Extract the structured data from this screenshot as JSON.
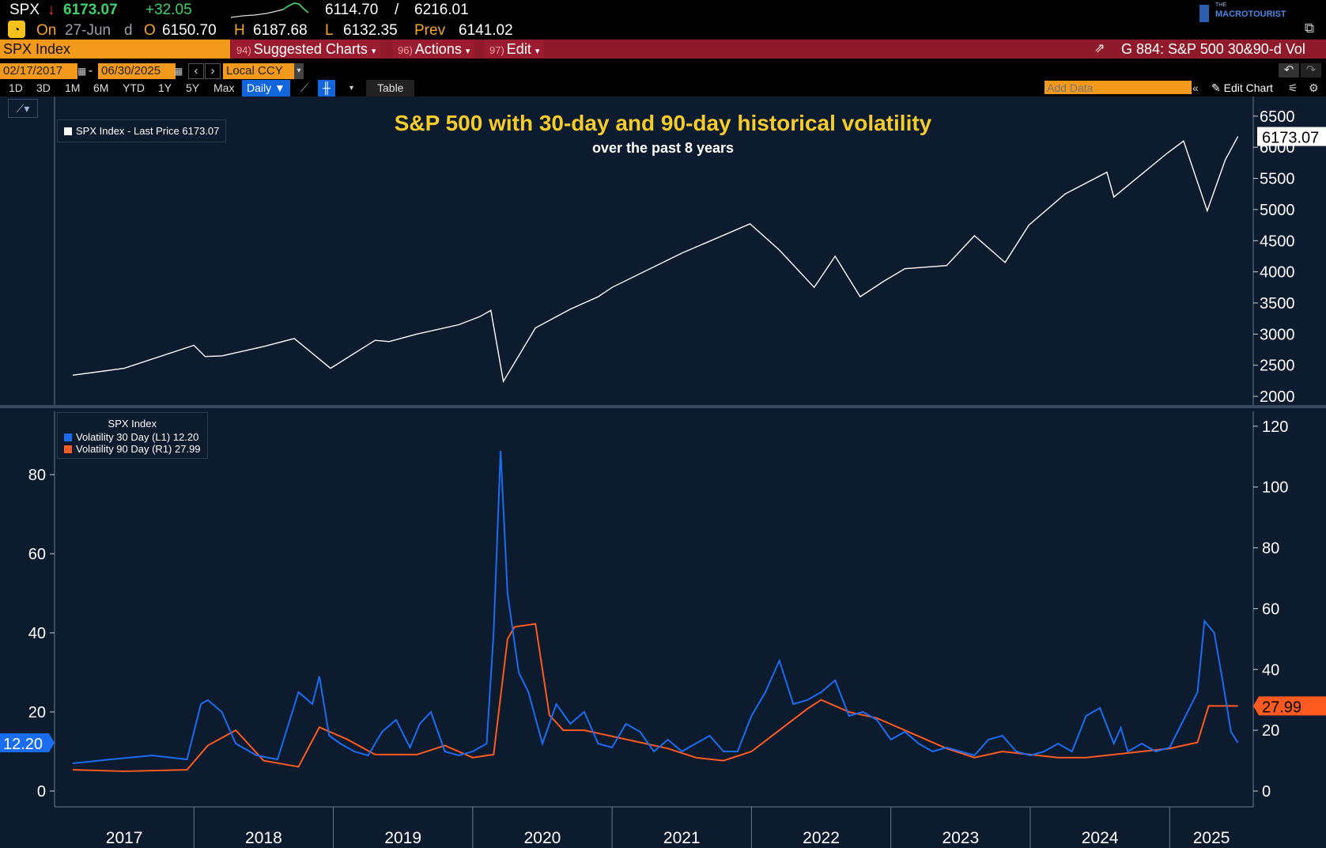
{
  "quote": {
    "ticker": "SPX",
    "arrow": "↓",
    "last": "6173.07",
    "change": "+32.05",
    "range_low": "6114.70",
    "range_sep": "/",
    "range_high": "6216.01",
    "on_label": "On",
    "date": "27-Jun",
    "freq": "d",
    "o_label": "O",
    "open": "6150.70",
    "h_label": "H",
    "high": "6187.68",
    "l_label": "L",
    "low": "6132.35",
    "prev_label": "Prev",
    "prev": "6141.02"
  },
  "logo": {
    "small": "THE",
    "text": "MACROTOURIST"
  },
  "cmdbar": {
    "security": "SPX Index",
    "btn1_num": "94)",
    "btn1": "Suggested Charts",
    "btn2_num": "96)",
    "btn2": "Actions",
    "btn3_num": "97)",
    "btn3": "Edit",
    "chart_title": "G 884: S&P 500 30&90-d Vol"
  },
  "daterange": {
    "start": "02/17/2017",
    "sep": "-",
    "end": "06/30/2025",
    "currency": "Local CCY"
  },
  "periods": [
    "1D",
    "3D",
    "1M",
    "6M",
    "YTD",
    "1Y",
    "5Y",
    "Max"
  ],
  "frequency": "Daily",
  "table_label": "Table",
  "add_data_placeholder": "Add Data",
  "edit_chart": "Edit Chart",
  "colors": {
    "price": "#ffffff",
    "vol30": "#1a6cf0",
    "vol90": "#ff5a1f",
    "title": "#f6cc2a",
    "bg": "#0d1b2e"
  },
  "chart_data": [
    {
      "type": "line",
      "title": "S&P 500 with 30-day and 90-day historical volatility",
      "subtitle": "over the past 8 years",
      "legend": "SPX Index - Last Price 6173.07",
      "last_value_label": "6173.07",
      "x_ticks": [
        "2017",
        "2018",
        "2019",
        "2020",
        "2021",
        "2022",
        "2023",
        "2024",
        "2025"
      ],
      "ylim": [
        1950,
        6650
      ],
      "yticks": [
        2000,
        2500,
        3000,
        3500,
        4000,
        4500,
        5000,
        5500,
        6000,
        6500
      ],
      "series": [
        {
          "name": "SPX Index - Last Price",
          "x": [
            2017.13,
            2017.5,
            2018.0,
            2018.08,
            2018.2,
            2018.5,
            2018.72,
            2018.98,
            2019.3,
            2019.4,
            2019.6,
            2019.9,
            2020.05,
            2020.13,
            2020.22,
            2020.45,
            2020.7,
            2020.9,
            2021.0,
            2021.5,
            2021.99,
            2022.2,
            2022.45,
            2022.6,
            2022.78,
            2022.95,
            2023.1,
            2023.4,
            2023.6,
            2023.82,
            2023.99,
            2024.25,
            2024.55,
            2024.6,
            2024.98,
            2025.1,
            2025.27,
            2025.4,
            2025.49
          ],
          "values": [
            2340,
            2450,
            2820,
            2640,
            2650,
            2800,
            2930,
            2450,
            2900,
            2880,
            3000,
            3150,
            3280,
            3380,
            2240,
            3100,
            3400,
            3600,
            3750,
            4300,
            4770,
            4350,
            3750,
            4250,
            3600,
            3850,
            4050,
            4100,
            4580,
            4150,
            4750,
            5250,
            5600,
            5200,
            5900,
            6100,
            4980,
            5800,
            6173
          ]
        }
      ]
    },
    {
      "type": "line",
      "legend_title": "SPX Index",
      "y_left_ticks": [
        0,
        20,
        40,
        60,
        80
      ],
      "y_right_ticks": [
        0,
        20,
        40,
        60,
        80,
        100,
        120
      ],
      "ylim_left": [
        -2,
        95
      ],
      "ylim_right": [
        -2.6,
        123.6
      ],
      "x_ticks": [
        "2017",
        "2018",
        "2019",
        "2020",
        "2021",
        "2022",
        "2023",
        "2024",
        "2025"
      ],
      "series": [
        {
          "name": "Volatility 30 Day",
          "axis": "L1",
          "last_label": "12.20",
          "legend": "Volatility 30 Day  (L1) 12.20",
          "x": [
            2017.13,
            2017.4,
            2017.7,
            2017.95,
            2018.05,
            2018.1,
            2018.2,
            2018.3,
            2018.45,
            2018.6,
            2018.75,
            2018.85,
            2018.9,
            2018.97,
            2019.05,
            2019.15,
            2019.25,
            2019.35,
            2019.45,
            2019.55,
            2019.62,
            2019.7,
            2019.8,
            2019.9,
            2020.0,
            2020.1,
            2020.15,
            2020.2,
            2020.25,
            2020.33,
            2020.4,
            2020.5,
            2020.6,
            2020.7,
            2020.8,
            2020.9,
            2021.0,
            2021.1,
            2021.2,
            2021.3,
            2021.4,
            2021.5,
            2021.6,
            2021.7,
            2021.8,
            2021.9,
            2022.0,
            2022.1,
            2022.2,
            2022.3,
            2022.4,
            2022.5,
            2022.6,
            2022.7,
            2022.8,
            2022.9,
            2023.0,
            2023.1,
            2023.2,
            2023.3,
            2023.4,
            2023.5,
            2023.6,
            2023.7,
            2023.8,
            2023.9,
            2024.0,
            2024.1,
            2024.2,
            2024.3,
            2024.4,
            2024.5,
            2024.6,
            2024.65,
            2024.7,
            2024.8,
            2024.9,
            2025.0,
            2025.1,
            2025.2,
            2025.25,
            2025.32,
            2025.38,
            2025.44,
            2025.49
          ],
          "values": [
            7,
            8,
            9,
            8,
            22,
            23,
            20,
            12,
            9,
            8,
            25,
            22,
            29,
            14,
            12,
            10,
            9,
            15,
            18,
            11,
            17,
            20,
            10,
            9,
            10,
            12,
            40,
            86,
            50,
            30,
            25,
            12,
            22,
            17,
            20,
            12,
            11,
            17,
            15,
            10,
            13,
            10,
            12,
            14,
            10,
            10,
            19,
            25,
            33,
            22,
            23,
            25,
            28,
            19,
            20,
            18,
            13,
            15,
            12,
            10,
            11,
            10,
            9,
            13,
            14,
            10,
            9,
            10,
            12,
            10,
            19,
            21,
            12,
            16,
            10,
            12,
            10,
            11,
            18,
            25,
            43,
            40,
            28,
            15,
            12.2
          ]
        },
        {
          "name": "Volatility 90 Day",
          "axis": "R1",
          "last_label": "27.99",
          "legend": "Volatility 90 Day  (R1) 27.99",
          "x": [
            2017.13,
            2017.5,
            2017.95,
            2018.1,
            2018.3,
            2018.5,
            2018.75,
            2018.9,
            2019.1,
            2019.3,
            2019.6,
            2019.8,
            2020.0,
            2020.15,
            2020.25,
            2020.3,
            2020.45,
            2020.55,
            2020.65,
            2020.8,
            2021.0,
            2021.2,
            2021.4,
            2021.6,
            2021.8,
            2022.0,
            2022.2,
            2022.4,
            2022.5,
            2022.7,
            2022.9,
            2023.0,
            2023.2,
            2023.4,
            2023.6,
            2023.8,
            2024.0,
            2024.2,
            2024.4,
            2024.6,
            2024.8,
            2025.0,
            2025.2,
            2025.28,
            2025.35,
            2025.49
          ],
          "values": [
            7,
            6.5,
            7,
            15,
            20,
            10,
            8,
            21,
            17,
            12,
            12,
            15,
            11,
            12,
            50,
            54,
            55,
            25,
            20,
            20,
            18,
            16,
            14,
            11,
            10,
            13,
            20,
            27,
            30,
            26,
            24,
            22,
            18,
            14,
            11,
            13,
            12,
            11,
            11,
            12,
            13,
            14,
            16,
            28,
            28,
            28
          ]
        }
      ]
    }
  ]
}
